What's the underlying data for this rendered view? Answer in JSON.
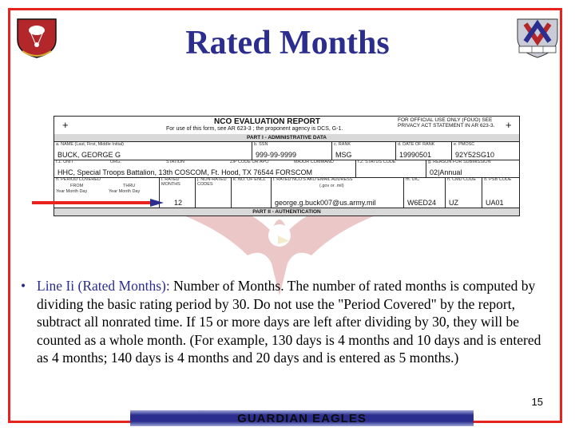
{
  "slide": {
    "title": "Rated Months",
    "bullet_highlight": "Line Ii (Rated Months):",
    "bullet_text": " Number of Months. The number of rated months is computed by dividing the basic rating period by 30. Do not use the \"Period Covered\" by the report, subtract all nonrated time. If 15 or more days are left after dividing by 30, they will be counted as a whole month. (For example, 130 days is 4 months and 10 days and is entered as 4 months; 140 days is 4 months and 20 days and is entered as 5 months.)",
    "bullet_symbol": "•",
    "page_number": "15",
    "footer": "GUARDIAN EAGLES",
    "accent_color": "#e8231d",
    "title_color": "#2b2e8f",
    "left_logo": "airborne-unit-crest-icon",
    "right_logo": "corps-insignia-icon",
    "watermark": "eagle-icon"
  },
  "form": {
    "title": "NCO EVALUATION REPORT",
    "subtitle": "For use of this form, see AR 623-3 ; the proponent agency is DCS, G-1.",
    "fouo": "FOR OFFICIAL USE ONLY (FOUO) SEE PRIVACY ACT STATEMENT IN AR 623-3.",
    "part1": "PART I - ADMINISTRATIVE DATA",
    "part2": "PART II - AUTHENTICATION",
    "name_label": "a. NAME (Last, First, Middle Initial)",
    "name_value": "BUCK, GEORGE G",
    "ssn_label": "b. SSN",
    "ssn_value": "999-99-9999",
    "rank_label": "c. RANK",
    "rank_value": "MSG",
    "dor_label": "d. DATE OF RANK",
    "dor_value": "19990501",
    "pmosc_label": "e. PMOSC",
    "pmosc_value": "92Y52SG10",
    "unit_label": "f.1. UNIT",
    "org_label": "ORG.",
    "station_label": "STATION",
    "zip_label": "ZIP CODE OR APO",
    "major_cmd_label": "MAJOR COMMAND",
    "unit_value": "HHC, Special Troops Battalion, 13th COSCOM, Ft. Hood, TX  76544   FORSCOM",
    "status_label": "f.2. STATUS CODE",
    "reason_label": "g. REASON FOR SUBMISSION",
    "reason_value": "02|Annual",
    "period_label": "h. PERIOD COVERED",
    "from_label": "FROM",
    "thru_label": "THRU",
    "ymd": "Year   Month   Day",
    "rated_months_label": "i. RATED MONTHS",
    "rated_months_value": "12",
    "nonrated_label": "j. NON-RATED CODES",
    "encl_label": "k. NO. OF ENCL",
    "email_label": "l. RATED NCO'S AKO EMAIL ADDRESS",
    "email_hint": "(.gov or .mil)",
    "email_value": "george.g.buck007@us.army.mil",
    "uic_label": "m. UIC",
    "uic_value": "W6ED24",
    "cmd_label": "n. CMD CODE",
    "cmd_value": "UZ",
    "psb_label": "o. PSB CODE",
    "psb_value": "UA01"
  }
}
